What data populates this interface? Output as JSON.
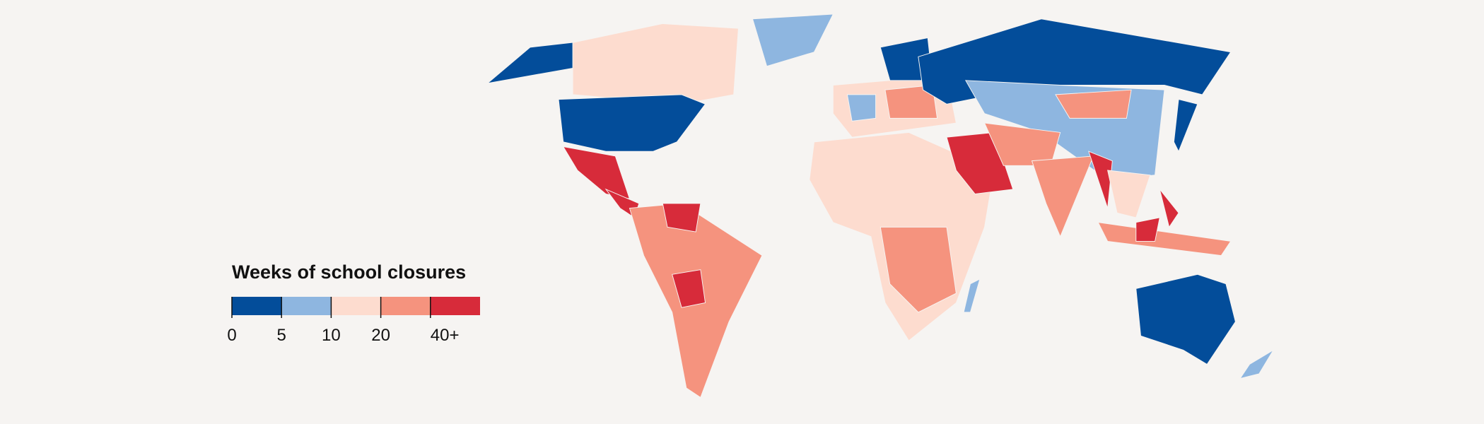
{
  "legend": {
    "title": "Weeks of school closures",
    "colors": [
      "#034d9a",
      "#8eb6e0",
      "#fddccf",
      "#f5937e",
      "#d72b3a"
    ],
    "ticks": [
      0,
      5,
      10,
      20,
      {
        "value": 40,
        "label": "40+"
      }
    ]
  }
}
